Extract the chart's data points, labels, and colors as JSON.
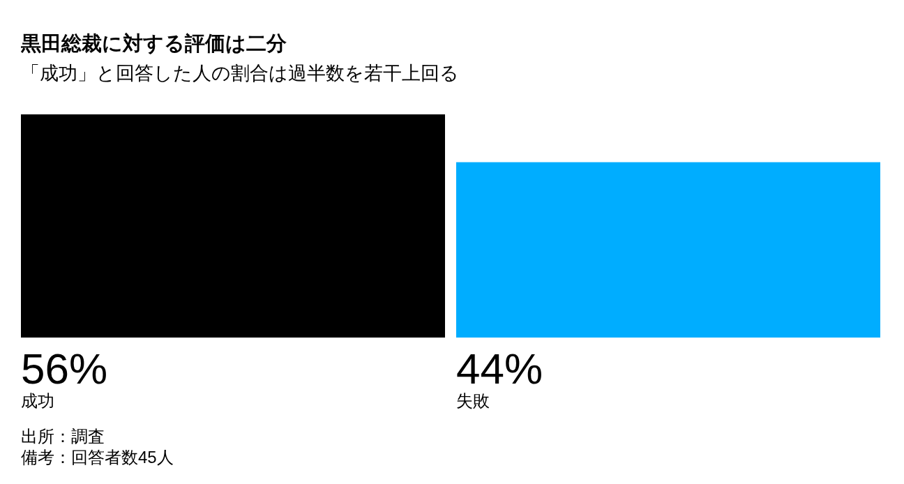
{
  "chart_data": {
    "type": "bar",
    "title": "黒田総裁に対する評価は二分",
    "subtitle": "「成功」と回答した人の割合は過半数を若干上回る",
    "categories": [
      "成功",
      "失敗"
    ],
    "values": [
      56,
      44
    ],
    "colors": [
      "#000000",
      "#00adff"
    ],
    "value_labels": [
      "56%",
      "44%"
    ],
    "annotations": [
      "出所：調査",
      "備考：回答者数45人"
    ]
  }
}
